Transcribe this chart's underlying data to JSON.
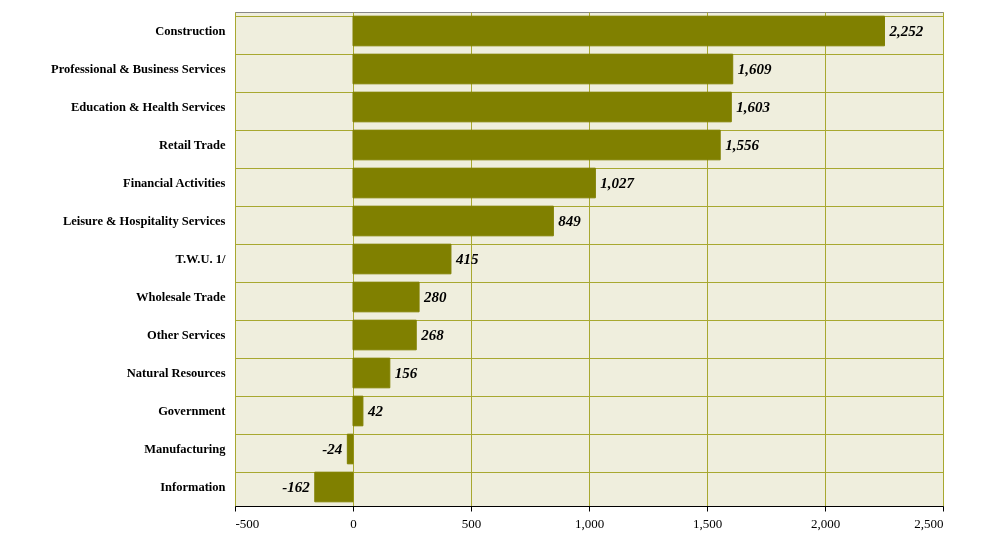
{
  "chart_data": {
    "type": "bar",
    "orientation": "horizontal",
    "categories": [
      "Construction",
      "Professional & Business Services",
      "Education & Health Services",
      "Retail Trade",
      "Financial Activities",
      "Leisure & Hospitality Services",
      "T.W.U. 1/",
      "Wholesale Trade",
      "Other Services",
      "Natural Resources",
      "Government",
      "Manufacturing",
      "Information"
    ],
    "values": [
      2252,
      1609,
      1603,
      1556,
      1027,
      849,
      415,
      280,
      268,
      156,
      42,
      -24,
      -162
    ],
    "value_labels": [
      "2,252",
      "1,609",
      "1,603",
      "1,556",
      "1,027",
      "849",
      "415",
      "280",
      "268",
      "156",
      "42",
      "-24",
      "-162"
    ],
    "color": "#808000",
    "xlim": [
      -500,
      2500
    ],
    "xticks": [
      {
        "value": -500,
        "label": "-500"
      },
      0,
      500,
      {
        "value": 1000,
        "label": "1,000"
      },
      {
        "value": 1500,
        "label": "1,500"
      },
      {
        "value": 2000,
        "label": "2,000"
      },
      {
        "value": 2500,
        "label": "2,500"
      }
    ],
    "grid": true
  }
}
